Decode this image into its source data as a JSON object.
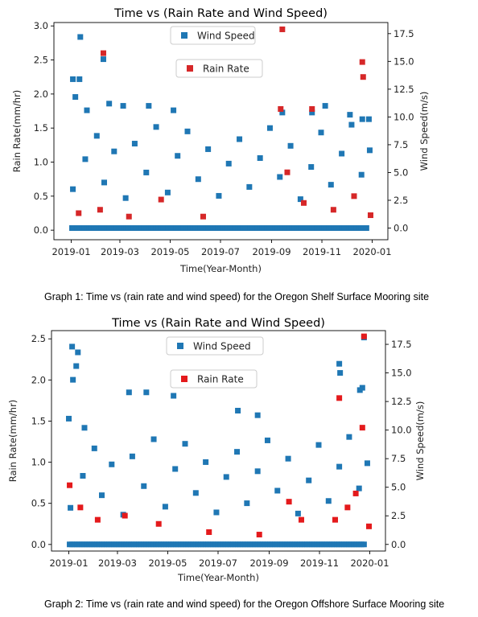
{
  "captions": {
    "graph1": "Graph 1: Time vs (rain rate and wind speed) for the Oregon Shelf Surface Mooring site",
    "graph2": "Graph 2: Time vs (rain rate and wind speed) for the Oregon Offshore Surface Mooring site"
  },
  "chart_data": [
    {
      "type": "scatter",
      "title": "Time vs (Rain Rate and Wind Speed)",
      "xlabel": "Time(Year-Month)",
      "ylabel": "Rain Rate(mm/hr)",
      "y2label": "Wind Speed(m/s)",
      "xlim": [
        "2018-12-11",
        "2020-01-20"
      ],
      "x_ticks": [
        "2019-01",
        "2019-03",
        "2019-05",
        "2019-07",
        "2019-09",
        "2019-11",
        "2020-01"
      ],
      "ylim": [
        -0.14,
        3.05
      ],
      "y_ticks": [
        "0.0",
        "0.5",
        "1.0",
        "1.5",
        "2.0",
        "2.5",
        "3.0"
      ],
      "y2lim": [
        -1.05,
        18.5
      ],
      "y2_ticks": [
        "0.0",
        "2.5",
        "5.0",
        "7.5",
        "10.0",
        "12.5",
        "15.0",
        "17.5"
      ],
      "grid": false,
      "legend_placement": [
        "top-center",
        "upper-center"
      ],
      "colors": {
        "wind": "#1f77b4",
        "rain": "#d62728"
      },
      "series": [
        {
          "name": "Wind Speed",
          "axis": "right",
          "marker": "square",
          "color": "#1f77b4",
          "points": [
            [
              "2019-01-12",
              17.2
            ],
            [
              "2019-01-03",
              13.4
            ],
            [
              "2019-01-11",
              13.4
            ],
            [
              "2019-01-06",
              11.8
            ],
            [
              "2019-02-09",
              15.2
            ],
            [
              "2019-01-20",
              10.6
            ],
            [
              "2019-02-16",
              11.2
            ],
            [
              "2019-03-05",
              11.0
            ],
            [
              "2019-04-05",
              11.0
            ],
            [
              "2019-05-05",
              10.6
            ],
            [
              "2019-09-14",
              10.4
            ],
            [
              "2019-10-20",
              10.4
            ],
            [
              "2019-11-05",
              11.0
            ],
            [
              "2019-12-05",
              10.2
            ],
            [
              "2019-12-20",
              9.8
            ],
            [
              "2019-12-28",
              9.8
            ],
            [
              "2019-01-03",
              3.5
            ],
            [
              "2019-01-18",
              6.2
            ],
            [
              "2019-02-01",
              8.3
            ],
            [
              "2019-02-10",
              4.1
            ],
            [
              "2019-02-22",
              6.9
            ],
            [
              "2019-03-08",
              2.7
            ],
            [
              "2019-03-19",
              7.6
            ],
            [
              "2019-04-02",
              5.0
            ],
            [
              "2019-04-14",
              9.1
            ],
            [
              "2019-04-28",
              3.2
            ],
            [
              "2019-05-10",
              6.5
            ],
            [
              "2019-05-22",
              8.7
            ],
            [
              "2019-06-04",
              4.4
            ],
            [
              "2019-06-16",
              7.1
            ],
            [
              "2019-06-29",
              2.9
            ],
            [
              "2019-07-11",
              5.8
            ],
            [
              "2019-07-24",
              8.0
            ],
            [
              "2019-08-05",
              3.7
            ],
            [
              "2019-08-18",
              6.3
            ],
            [
              "2019-08-30",
              9.0
            ],
            [
              "2019-09-11",
              4.6
            ],
            [
              "2019-09-24",
              7.4
            ],
            [
              "2019-10-06",
              2.6
            ],
            [
              "2019-10-19",
              5.5
            ],
            [
              "2019-10-31",
              8.6
            ],
            [
              "2019-11-12",
              3.9
            ],
            [
              "2019-11-25",
              6.7
            ],
            [
              "2019-12-07",
              9.3
            ],
            [
              "2019-12-19",
              4.8
            ],
            [
              "2019-12-29",
              7.0
            ]
          ]
        },
        {
          "name": "Rain Rate",
          "axis": "left",
          "marker": "square",
          "color": "#d62728",
          "points": [
            [
              "2019-02-09",
              2.6
            ],
            [
              "2019-09-14",
              2.95
            ],
            [
              "2019-12-20",
              2.47
            ],
            [
              "2019-12-21",
              2.25
            ],
            [
              "2019-09-12",
              1.78
            ],
            [
              "2019-10-20",
              1.78
            ],
            [
              "2019-01-10",
              0.25
            ],
            [
              "2019-02-05",
              0.3
            ],
            [
              "2019-03-12",
              0.2
            ],
            [
              "2019-04-20",
              0.45
            ],
            [
              "2019-06-10",
              0.2
            ],
            [
              "2019-09-20",
              0.85
            ],
            [
              "2019-10-10",
              0.4
            ],
            [
              "2019-11-15",
              0.3
            ],
            [
              "2019-12-10",
              0.5
            ],
            [
              "2019-12-30",
              0.22
            ]
          ]
        }
      ]
    },
    {
      "type": "scatter",
      "title": "Time vs (Rain Rate and Wind Speed)",
      "xlabel": "Time(Year-Month)",
      "ylabel": "Rain Rate(mm/hr)",
      "y2label": "Wind Speed(m/s)",
      "xlim": [
        "2018-12-11",
        "2020-01-20"
      ],
      "x_ticks": [
        "2019-01",
        "2019-03",
        "2019-05",
        "2019-07",
        "2019-09",
        "2019-11",
        "2020-01"
      ],
      "ylim": [
        -0.08,
        2.6
      ],
      "y2_ticks": [
        "0.0",
        "2.5",
        "5.0",
        "7.5",
        "10.0",
        "12.5",
        "15.0",
        "17.5"
      ],
      "y_ticks": [
        "0.0",
        "0.5",
        "1.0",
        "1.5",
        "2.0",
        "2.5"
      ],
      "y2lim": [
        -0.58,
        18.7
      ],
      "grid": false,
      "legend_placement": [
        "top-center",
        "upper-center"
      ],
      "colors": {
        "wind": "#1f77b4",
        "rain": "#e41a1c"
      },
      "series": [
        {
          "name": "Wind Speed",
          "axis": "right",
          "marker": "square",
          "color": "#1f77b4",
          "points": [
            [
              "2019-01-05",
              17.3
            ],
            [
              "2019-01-12",
              16.8
            ],
            [
              "2019-01-10",
              15.6
            ],
            [
              "2019-01-06",
              14.4
            ],
            [
              "2019-12-25",
              18.1
            ],
            [
              "2019-11-25",
              15.8
            ],
            [
              "2019-11-26",
              15.0
            ],
            [
              "2019-12-20",
              13.5
            ],
            [
              "2019-12-23",
              13.7
            ],
            [
              "2019-03-15",
              13.3
            ],
            [
              "2019-04-05",
              13.3
            ],
            [
              "2019-05-08",
              13.0
            ],
            [
              "2019-07-25",
              11.7
            ],
            [
              "2019-08-18",
              11.3
            ],
            [
              "2019-01-01",
              11.0
            ],
            [
              "2019-01-20",
              10.2
            ],
            [
              "2019-01-03",
              3.2
            ],
            [
              "2019-01-18",
              6.0
            ],
            [
              "2019-02-01",
              8.4
            ],
            [
              "2019-02-10",
              4.3
            ],
            [
              "2019-02-22",
              7.0
            ],
            [
              "2019-03-08",
              2.6
            ],
            [
              "2019-03-19",
              7.7
            ],
            [
              "2019-04-02",
              5.1
            ],
            [
              "2019-04-14",
              9.2
            ],
            [
              "2019-04-28",
              3.3
            ],
            [
              "2019-05-10",
              6.6
            ],
            [
              "2019-05-22",
              8.8
            ],
            [
              "2019-06-04",
              4.5
            ],
            [
              "2019-06-16",
              7.2
            ],
            [
              "2019-06-29",
              2.8
            ],
            [
              "2019-07-11",
              5.9
            ],
            [
              "2019-07-24",
              8.1
            ],
            [
              "2019-08-05",
              3.6
            ],
            [
              "2019-08-18",
              6.4
            ],
            [
              "2019-08-30",
              9.1
            ],
            [
              "2019-09-11",
              4.7
            ],
            [
              "2019-09-24",
              7.5
            ],
            [
              "2019-10-06",
              2.7
            ],
            [
              "2019-10-19",
              5.6
            ],
            [
              "2019-10-31",
              8.7
            ],
            [
              "2019-11-12",
              3.8
            ],
            [
              "2019-11-25",
              6.8
            ],
            [
              "2019-12-07",
              9.4
            ],
            [
              "2019-12-19",
              4.9
            ],
            [
              "2019-12-29",
              7.1
            ]
          ]
        },
        {
          "name": "Rain Rate",
          "axis": "left",
          "marker": "square",
          "color": "#e41a1c",
          "points": [
            [
              "2019-12-25",
              2.53
            ],
            [
              "2019-11-25",
              1.78
            ],
            [
              "2019-12-23",
              1.42
            ],
            [
              "2019-01-02",
              0.72
            ],
            [
              "2019-12-15",
              0.62
            ],
            [
              "2019-01-15",
              0.45
            ],
            [
              "2019-02-05",
              0.3
            ],
            [
              "2019-03-10",
              0.35
            ],
            [
              "2019-04-20",
              0.25
            ],
            [
              "2019-06-20",
              0.15
            ],
            [
              "2019-09-25",
              0.52
            ],
            [
              "2019-10-10",
              0.3
            ],
            [
              "2019-11-20",
              0.3
            ],
            [
              "2019-12-05",
              0.45
            ],
            [
              "2019-12-31",
              0.22
            ],
            [
              "2019-08-20",
              0.12
            ]
          ]
        }
      ]
    }
  ]
}
